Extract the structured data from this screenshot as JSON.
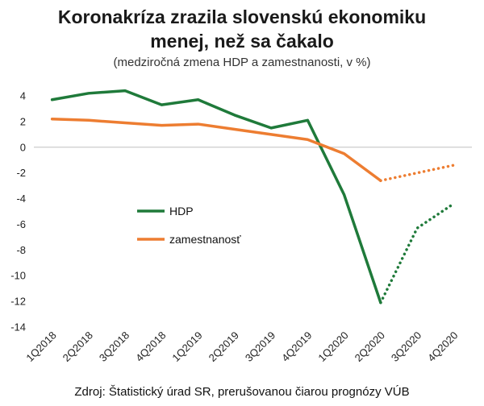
{
  "chart_data": {
    "type": "line",
    "title": [
      "Koronakríza zrazila slovenskú ekonomiku",
      "menej, než sa čakalo"
    ],
    "subtitle": "(medziročná zmena HDP a zamestnanosti, v %)",
    "source": "Zdroj: Štatistický úrad SR, prerušovanou čiarou prognózy VÚB",
    "categories": [
      "1Q2018",
      "2Q2018",
      "3Q2018",
      "4Q2018",
      "1Q2019",
      "2Q2019",
      "3Q2019",
      "4Q2019",
      "1Q2020",
      "2Q2020",
      "3Q2020",
      "4Q2020"
    ],
    "ylim": [
      -14,
      4
    ],
    "yticks": [
      4,
      2,
      0,
      -2,
      -4,
      -6,
      -8,
      -10,
      -12,
      -14
    ],
    "grid": false,
    "legend_position": "middle-left",
    "series": [
      {
        "name": "HDP",
        "color": "#1f7a3a",
        "values": [
          3.7,
          4.2,
          4.4,
          3.3,
          3.7,
          2.5,
          1.5,
          2.1,
          -3.7,
          -12.1,
          -6.3,
          -4.4
        ],
        "forecast_from_index": 9
      },
      {
        "name": "zamestnanosť",
        "color": "#ed7d31",
        "values": [
          2.2,
          2.1,
          1.9,
          1.7,
          1.8,
          1.4,
          1.0,
          0.6,
          -0.5,
          -2.6,
          -2.0,
          -1.4
        ],
        "forecast_from_index": 9
      }
    ]
  }
}
